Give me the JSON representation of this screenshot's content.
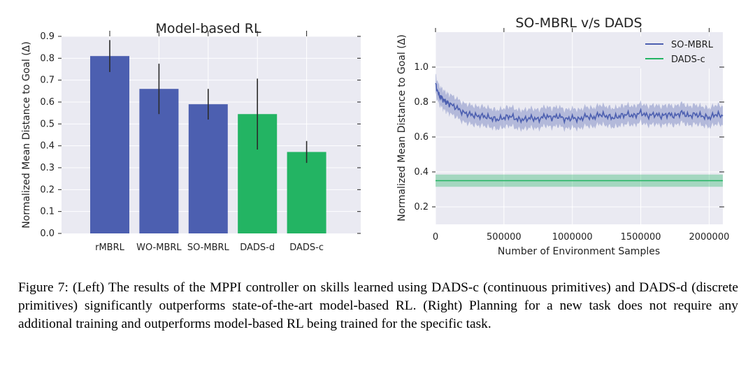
{
  "chart_data": [
    {
      "type": "bar",
      "title": "Model-based RL",
      "ylabel": "Normalized Mean Distance to Goal (Δ)",
      "xlabel": "",
      "categories": [
        "rMBRL",
        "WO-MBRL",
        "SO-MBRL",
        "DADS-d",
        "DADS-c"
      ],
      "values": [
        0.81,
        0.66,
        0.59,
        0.545,
        0.372
      ],
      "errors": [
        0.073,
        0.115,
        0.07,
        0.162,
        0.05
      ],
      "bar_colors": [
        "#4c5fb0",
        "#4c5fb0",
        "#4c5fb0",
        "#23b463",
        "#23b463"
      ],
      "ylim": [
        0,
        0.9
      ],
      "yticks": [
        0.0,
        0.1,
        0.2,
        0.3,
        0.4,
        0.5,
        0.6,
        0.7,
        0.8,
        0.9
      ],
      "grid": true,
      "background": "#eaeaf2"
    },
    {
      "type": "line",
      "title": "SO-MBRL v/s DADS",
      "ylabel": "Normalized Mean Distance to Goal (Δ)",
      "xlabel": "Number of Environment Samples",
      "xlim": [
        0,
        2100000
      ],
      "ylim": [
        0.1,
        1.2
      ],
      "xticks": [
        0,
        500000,
        1000000,
        1500000,
        2000000
      ],
      "yticks": [
        0.2,
        0.4,
        0.6,
        0.8,
        1.0
      ],
      "grid": true,
      "legend_position": "top-right",
      "series": [
        {
          "name": "SO-MBRL",
          "color": "#4c5fb0",
          "x": [
            0,
            25000,
            50000,
            75000,
            100000,
            150000,
            200000,
            250000,
            300000,
            350000,
            400000,
            450000,
            500000,
            550000,
            600000,
            650000,
            700000,
            750000,
            800000,
            850000,
            900000,
            950000,
            1000000,
            1050000,
            1100000,
            1150000,
            1200000,
            1250000,
            1300000,
            1350000,
            1400000,
            1450000,
            1500000,
            1550000,
            1600000,
            1650000,
            1700000,
            1750000,
            1800000,
            1850000,
            1900000,
            1950000,
            2000000,
            2050000,
            2100000
          ],
          "y": [
            0.9,
            0.84,
            0.82,
            0.8,
            0.79,
            0.77,
            0.74,
            0.73,
            0.72,
            0.72,
            0.71,
            0.7,
            0.71,
            0.72,
            0.7,
            0.7,
            0.71,
            0.7,
            0.72,
            0.71,
            0.72,
            0.7,
            0.71,
            0.7,
            0.72,
            0.71,
            0.73,
            0.72,
            0.71,
            0.72,
            0.73,
            0.72,
            0.74,
            0.72,
            0.73,
            0.72,
            0.73,
            0.72,
            0.74,
            0.72,
            0.73,
            0.72,
            0.71,
            0.73,
            0.72
          ],
          "band": 0.055
        },
        {
          "name": "DADS-c",
          "color": "#23b463",
          "x": [
            0,
            2100000
          ],
          "y": [
            0.35,
            0.35
          ],
          "band": 0.035
        }
      ],
      "background": "#eaeaf2"
    }
  ],
  "caption": "Figure 7: (Left) The results of the MPPI controller on skills learned using DADS-c (continuous primitives) and DADS-d (discrete primitives) significantly outperforms state-of-the-art model-based RL. (Right) Planning for a new task does not require any additional training and outperforms model-based RL being trained for the specific task."
}
